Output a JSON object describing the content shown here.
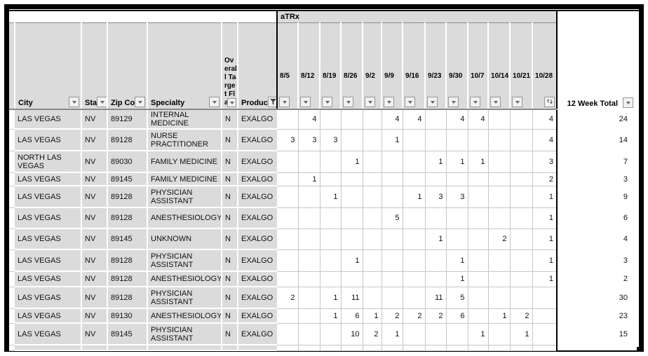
{
  "table": {
    "group_header": "aTRx",
    "columns": {
      "city": "City",
      "state": "Sta",
      "zip": "Zip Co",
      "specialty": "Specialty",
      "overall_target_flag": "Overall Target Flag",
      "product": "Produc",
      "total": "12 Week Total"
    },
    "week_columns": [
      "8/5",
      "8/12",
      "8/19",
      "8/26",
      "9/2",
      "9/9",
      "9/16",
      "9/23",
      "9/30",
      "10/7",
      "10/14",
      "10/21",
      "10/28"
    ],
    "icons": {
      "filter_dropdown": "▾",
      "filter_active": "funnel",
      "sort_descending": "↓"
    },
    "colors": {
      "header_fill": "#DBDBDB",
      "grid_line": "#C6C6C6",
      "block_border": "#000000",
      "header_rule": "#8A8A8A"
    },
    "rows": [
      {
        "city": "LAS VEGAS",
        "state": "NV",
        "zip": "89129",
        "specialty": "INTERNAL MEDICINE",
        "flag": "N",
        "product": "EXALGO",
        "weeks": [
          "",
          4,
          "",
          "",
          "",
          4,
          4,
          "",
          4,
          4,
          "",
          "",
          4
        ],
        "total": 24
      },
      {
        "city": "LAS VEGAS",
        "state": "NV",
        "zip": "89128",
        "specialty": "NURSE PRACTITIONER",
        "flag": "N",
        "product": "EXALGO",
        "weeks": [
          3,
          3,
          3,
          "",
          "",
          1,
          "",
          "",
          "",
          "",
          "",
          "",
          4
        ],
        "total": 14
      },
      {
        "city": "NORTH LAS VEGAS",
        "state": "NV",
        "zip": "89030",
        "specialty": "FAMILY MEDICINE",
        "flag": "N",
        "product": "EXALGO",
        "weeks": [
          "",
          "",
          "",
          1,
          "",
          "",
          "",
          1,
          1,
          1,
          "",
          "",
          3
        ],
        "total": 7
      },
      {
        "city": "LAS VEGAS",
        "state": "NV",
        "zip": "89145",
        "specialty": "FAMILY MEDICINE",
        "flag": "N",
        "product": "EXALGO",
        "weeks": [
          "",
          1,
          "",
          "",
          "",
          "",
          "",
          "",
          "",
          "",
          "",
          "",
          2
        ],
        "total": 3
      },
      {
        "city": "LAS VEGAS",
        "state": "NV",
        "zip": "89128",
        "specialty": "PHYSICIAN ASSISTANT",
        "flag": "N",
        "product": "EXALGO",
        "weeks": [
          "",
          "",
          1,
          "",
          "",
          "",
          1,
          3,
          3,
          "",
          "",
          "",
          1
        ],
        "total": 9
      },
      {
        "city": "LAS VEGAS",
        "state": "NV",
        "zip": "89128",
        "specialty": "ANESTHESIOLOGY",
        "flag": "N",
        "product": "EXALGO",
        "weeks": [
          "",
          "",
          "",
          "",
          "",
          5,
          "",
          "",
          "",
          "",
          "",
          "",
          1
        ],
        "total": 6
      },
      {
        "city": "LAS VEGAS",
        "state": "NV",
        "zip": "89145",
        "specialty": "UNKNOWN",
        "flag": "N",
        "product": "EXALGO",
        "weeks": [
          "",
          "",
          "",
          "",
          "",
          "",
          "",
          1,
          "",
          "",
          2,
          "",
          1
        ],
        "total": 4
      },
      {
        "city": "LAS VEGAS",
        "state": "NV",
        "zip": "89128",
        "specialty": "PHYSICIAN ASSISTANT",
        "flag": "N",
        "product": "EXALGO",
        "weeks": [
          "",
          "",
          "",
          1,
          "",
          "",
          "",
          "",
          1,
          "",
          "",
          "",
          1
        ],
        "total": 3
      },
      {
        "city": "LAS VEGAS",
        "state": "NV",
        "zip": "89128",
        "specialty": "ANESTHESIOLOGY",
        "flag": "N",
        "product": "EXALGO",
        "weeks": [
          "",
          "",
          "",
          "",
          "",
          "",
          "",
          "",
          1,
          "",
          "",
          "",
          1
        ],
        "total": 2
      },
      {
        "city": "LAS VEGAS",
        "state": "NV",
        "zip": "89128",
        "specialty": "PHYSICIAN ASSISTANT",
        "flag": "N",
        "product": "EXALGO",
        "weeks": [
          2,
          "",
          1,
          11,
          "",
          "",
          "",
          11,
          5,
          "",
          "",
          "",
          ""
        ],
        "total": 30
      },
      {
        "city": "LAS VEGAS",
        "state": "NV",
        "zip": "89130",
        "specialty": "ANESTHESIOLOGY",
        "flag": "N",
        "product": "EXALGO",
        "weeks": [
          "",
          "",
          1,
          6,
          1,
          2,
          2,
          2,
          6,
          "",
          1,
          2,
          ""
        ],
        "total": 23
      },
      {
        "city": "LAS VEGAS",
        "state": "NV",
        "zip": "89145",
        "specialty": "PHYSICIAN ASSISTANT",
        "flag": "N",
        "product": "EXALGO",
        "weeks": [
          "",
          "",
          "",
          10,
          2,
          1,
          "",
          "",
          "",
          1,
          "",
          1,
          ""
        ],
        "total": 15
      }
    ]
  }
}
